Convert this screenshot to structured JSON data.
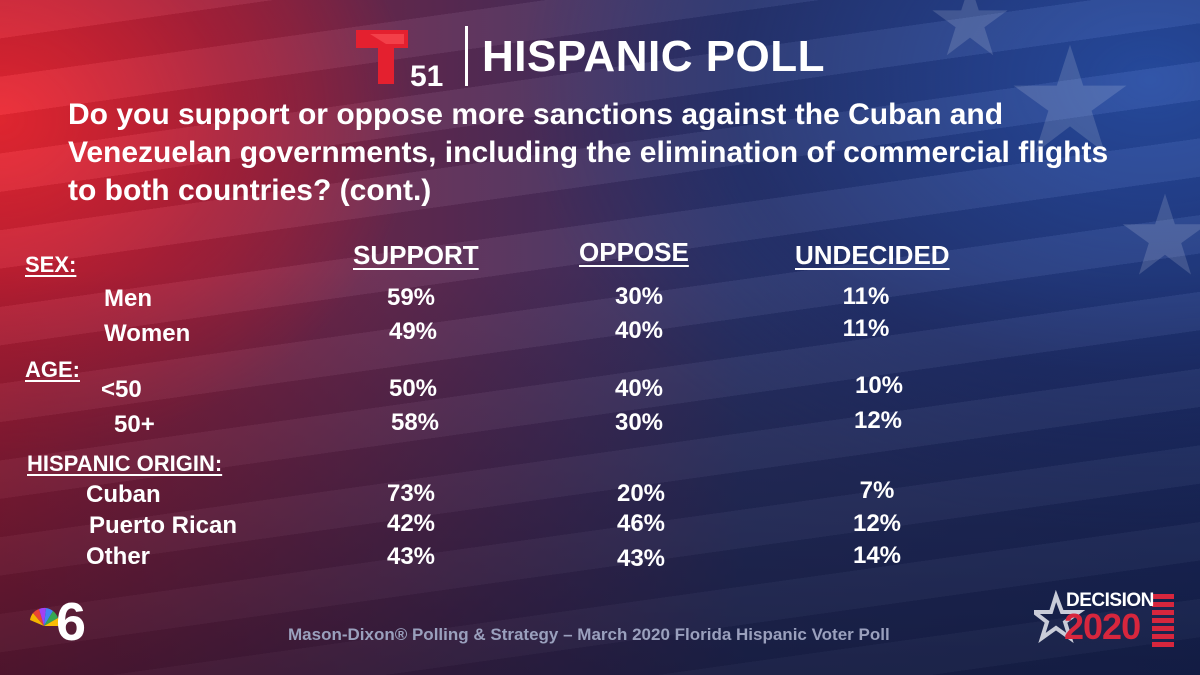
{
  "header": {
    "logo_number": "51",
    "title": "HISPANIC POLL"
  },
  "question": "Do you support or oppose more sanctions against the Cuban and Venezuelan governments, including the elimination of commercial flights to both countries? (cont.)",
  "columns": [
    "SUPPORT",
    "OPPOSE",
    "UNDECIDED"
  ],
  "sections": [
    {
      "label": "SEX:",
      "rows": [
        {
          "label": "Men",
          "values": [
            "59%",
            "30%",
            "11%"
          ]
        },
        {
          "label": "Women",
          "values": [
            "49%",
            "40%",
            "11%"
          ]
        }
      ]
    },
    {
      "label": "AGE:",
      "rows": [
        {
          "label": "<50",
          "values": [
            "50%",
            "40%",
            "10%"
          ]
        },
        {
          "label": "50+",
          "values": [
            "58%",
            "30%",
            "12%"
          ]
        }
      ]
    },
    {
      "label": "HISPANIC ORIGIN:",
      "rows": [
        {
          "label": "Cuban",
          "values": [
            "73%",
            "20%",
            "7%"
          ]
        },
        {
          "label": "Puerto Rican",
          "values": [
            "42%",
            "46%",
            "12%"
          ]
        },
        {
          "label": "Other",
          "values": [
            "43%",
            "43%",
            "14%"
          ]
        }
      ]
    }
  ],
  "footer": {
    "source": "Mason-Dixon® Polling & Strategy – March 2020 Florida Hispanic Voter Poll",
    "station_number": "6",
    "badge_word": "DECISION",
    "badge_year": "2020"
  },
  "colors": {
    "telemundo_red": "#e4202f",
    "badge_red": "#d7263d",
    "source_gray": "#9aa0bd"
  }
}
